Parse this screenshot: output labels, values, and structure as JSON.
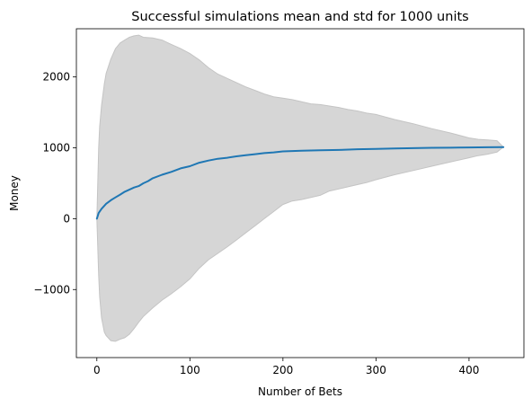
{
  "chart_data": {
    "type": "area",
    "title": "Successful simulations mean and std for 1000 units",
    "xlabel": "Number of Bets",
    "ylabel": "Money",
    "xlim": [
      -22,
      459
    ],
    "ylim": [
      -1960,
      2680
    ],
    "xticks": [
      0,
      100,
      200,
      300,
      400
    ],
    "yticks": [
      -1000,
      0,
      1000,
      2000
    ],
    "ytick_labels": [
      "−1000",
      "0",
      "1000",
      "2000"
    ],
    "grid": false,
    "legend": "none",
    "colors": {
      "mean_line": "#1f77b4",
      "band_fill": "#d6d6d6",
      "band_edge": "#c4c4c4"
    },
    "series": [
      {
        "role": "mean",
        "x": [
          0,
          2,
          5,
          10,
          15,
          20,
          25,
          30,
          35,
          40,
          45,
          50,
          55,
          60,
          70,
          80,
          90,
          100,
          110,
          120,
          130,
          140,
          150,
          160,
          170,
          180,
          190,
          200,
          210,
          220,
          240,
          260,
          280,
          300,
          320,
          340,
          360,
          380,
          400,
          420,
          437
        ],
        "values": [
          0,
          80,
          140,
          210,
          260,
          300,
          340,
          380,
          410,
          440,
          460,
          500,
          530,
          570,
          620,
          660,
          710,
          740,
          790,
          820,
          845,
          860,
          880,
          895,
          910,
          925,
          935,
          950,
          955,
          960,
          965,
          970,
          980,
          985,
          990,
          995,
          1000,
          1002,
          1005,
          1008,
          1010
        ]
      },
      {
        "role": "mean_plus_std",
        "x": [
          0,
          1,
          2,
          3,
          5,
          8,
          10,
          15,
          20,
          25,
          30,
          35,
          40,
          45,
          50,
          60,
          70,
          80,
          90,
          100,
          110,
          120,
          130,
          140,
          150,
          160,
          170,
          180,
          190,
          200,
          210,
          220,
          230,
          240,
          250,
          260,
          270,
          280,
          290,
          300,
          320,
          340,
          360,
          380,
          400,
          410,
          420,
          430,
          437
        ],
        "values": [
          0,
          500,
          1000,
          1300,
          1600,
          1900,
          2050,
          2250,
          2400,
          2480,
          2520,
          2560,
          2580,
          2590,
          2560,
          2550,
          2520,
          2460,
          2400,
          2330,
          2240,
          2130,
          2040,
          1980,
          1920,
          1860,
          1810,
          1760,
          1720,
          1700,
          1680,
          1650,
          1620,
          1610,
          1590,
          1570,
          1540,
          1520,
          1490,
          1470,
          1400,
          1340,
          1270,
          1210,
          1140,
          1120,
          1110,
          1100,
          1010
        ]
      },
      {
        "role": "mean_minus_std",
        "x": [
          0,
          1,
          2,
          3,
          5,
          8,
          10,
          15,
          20,
          25,
          30,
          35,
          40,
          45,
          50,
          60,
          70,
          80,
          90,
          100,
          110,
          120,
          130,
          140,
          150,
          160,
          170,
          180,
          190,
          200,
          210,
          220,
          230,
          240,
          250,
          260,
          270,
          280,
          290,
          300,
          320,
          340,
          360,
          380,
          400,
          410,
          420,
          430,
          437
        ],
        "values": [
          0,
          -400,
          -800,
          -1100,
          -1400,
          -1600,
          -1650,
          -1720,
          -1730,
          -1700,
          -1680,
          -1630,
          -1550,
          -1460,
          -1380,
          -1260,
          -1150,
          -1060,
          -960,
          -850,
          -700,
          -580,
          -490,
          -400,
          -300,
          -200,
          -100,
          0,
          100,
          200,
          250,
          270,
          300,
          330,
          390,
          420,
          450,
          480,
          510,
          550,
          620,
          680,
          740,
          800,
          860,
          890,
          910,
          940,
          1010
        ]
      }
    ]
  }
}
